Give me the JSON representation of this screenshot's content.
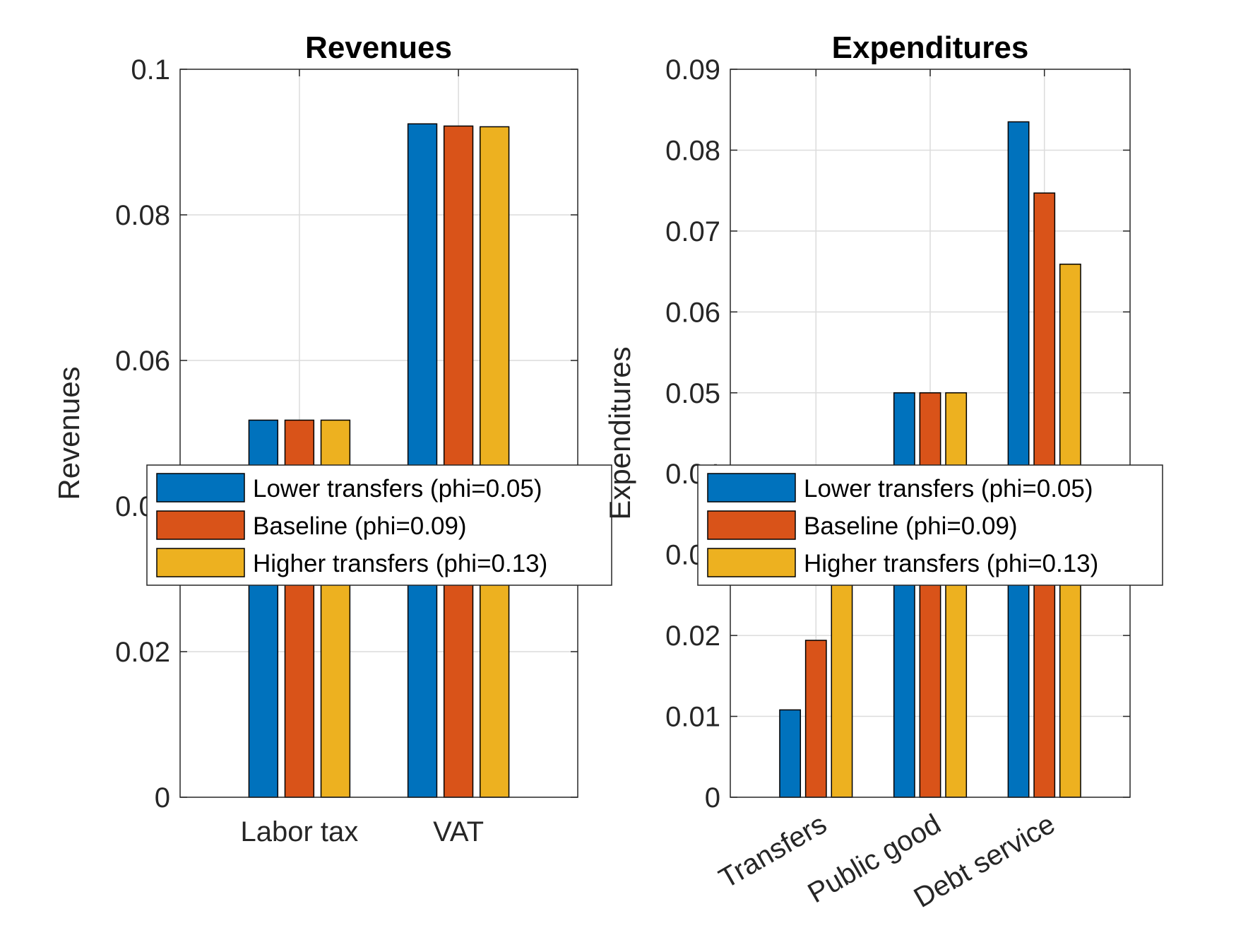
{
  "chart_data": [
    {
      "type": "bar",
      "title": "Revenues",
      "ylabel": "Revenues",
      "xlabel": "",
      "ylim": [
        0,
        0.1
      ],
      "yticks": [
        "0",
        "0.02",
        "0.04",
        "0.06",
        "0.08",
        "0.1"
      ],
      "ytick_values": [
        0,
        0.02,
        0.04,
        0.06,
        0.08,
        0.1
      ],
      "categories": [
        "Labor tax",
        "VAT"
      ],
      "category_label_rotation": 0,
      "grid": true,
      "legend_location": "center",
      "series": [
        {
          "name": "Lower transfers (phi=0.05)",
          "color": "#0072BD",
          "values": [
            0.0518,
            0.0925
          ]
        },
        {
          "name": "Baseline (phi=0.09)",
          "color": "#D95319",
          "values": [
            0.0518,
            0.0922
          ]
        },
        {
          "name": "Higher transfers (phi=0.13)",
          "color": "#EDB120",
          "values": [
            0.0518,
            0.0921
          ]
        }
      ]
    },
    {
      "type": "bar",
      "title": "Expenditures",
      "ylabel": "Expenditures",
      "xlabel": "",
      "ylim": [
        0,
        0.09
      ],
      "yticks": [
        "0",
        "0.01",
        "0.02",
        "0.03",
        "0.04",
        "0.05",
        "0.06",
        "0.07",
        "0.08",
        "0.09"
      ],
      "ytick_values": [
        0,
        0.01,
        0.02,
        0.03,
        0.04,
        0.05,
        0.06,
        0.07,
        0.08,
        0.09
      ],
      "categories": [
        "Transfers",
        "Public good",
        "Debt service"
      ],
      "category_label_rotation": -30,
      "grid": true,
      "legend_location": "center",
      "series": [
        {
          "name": "Lower transfers (phi=0.05)",
          "color": "#0072BD",
          "values": [
            0.0108,
            0.05,
            0.0835
          ]
        },
        {
          "name": "Baseline (phi=0.09)",
          "color": "#D95319",
          "values": [
            0.0194,
            0.05,
            0.0747
          ]
        },
        {
          "name": "Higher transfers (phi=0.13)",
          "color": "#EDB120",
          "values": [
            0.0285,
            0.05,
            0.0659
          ]
        }
      ]
    }
  ]
}
